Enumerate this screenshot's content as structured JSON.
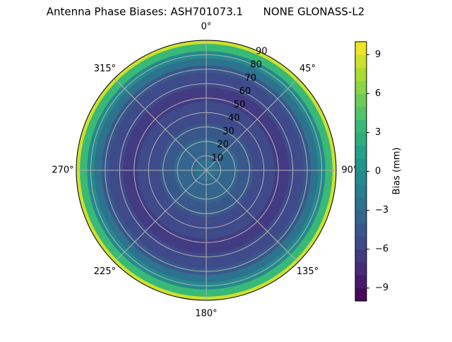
{
  "chart_data": {
    "type": "polar_contour",
    "title": "Antenna Phase Biases: ASH701073.1      NONE GLONASS-L2",
    "r": [
      0,
      5,
      10,
      15,
      20,
      25,
      30,
      35,
      40,
      45,
      50,
      55,
      60,
      65,
      70,
      75,
      80,
      85,
      90
    ],
    "values": [
      -3,
      -3,
      -3.5,
      -4,
      -4,
      -4.5,
      -5,
      -5.5,
      -6,
      -6,
      -6.5,
      -6.5,
      -6,
      -5.5,
      -4.5,
      -3,
      -1,
      3,
      8
    ],
    "rlim": [
      0,
      90
    ],
    "rticks": [
      10,
      20,
      30,
      40,
      50,
      60,
      70,
      80,
      90
    ],
    "thetaticks": [
      {
        "value": 0,
        "label": "0°"
      },
      {
        "value": 45,
        "label": "45°"
      },
      {
        "value": 90,
        "label": "90°"
      },
      {
        "value": 135,
        "label": "135°"
      },
      {
        "value": 180,
        "label": "180°"
      },
      {
        "value": 225,
        "label": "225°"
      },
      {
        "value": 270,
        "label": "270°"
      },
      {
        "value": 315,
        "label": "315°"
      }
    ],
    "colormap": "viridis",
    "color_levels": 20,
    "clim": [
      -10,
      10
    ],
    "cticks": [
      {
        "value": -9,
        "label": "−9"
      },
      {
        "value": -6,
        "label": "−6"
      },
      {
        "value": -3,
        "label": "−3"
      },
      0,
      3,
      6,
      9
    ],
    "colorbar_label": "Bias (mm)",
    "grid": true
  }
}
